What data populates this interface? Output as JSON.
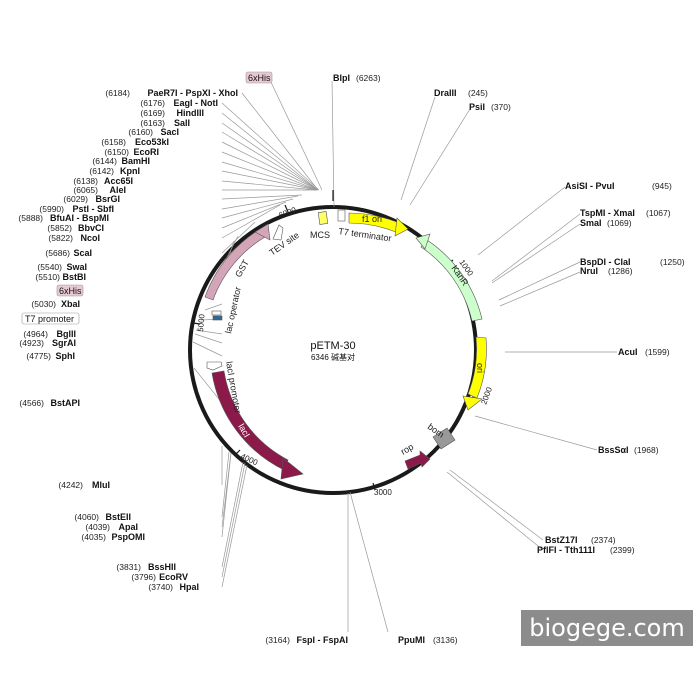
{
  "plasmid": {
    "name": "pETM-30",
    "size_label": "6346 碱基对"
  },
  "ticks": [
    "1000",
    "2000",
    "3000",
    "4000",
    "5000",
    "6000"
  ],
  "features": [
    {
      "label": "f1 ori",
      "color": "#ffff00"
    },
    {
      "label": "KanR",
      "color": "#ccffcc"
    },
    {
      "label": "ori",
      "color": "#ffff00"
    },
    {
      "label": "rop",
      "color": "#8b1a4a"
    },
    {
      "label": "bom",
      "color": "#999999"
    },
    {
      "label": "lacI",
      "color": "#8b1a4a"
    },
    {
      "label": "lacI promoter",
      "color": "#ffffff"
    },
    {
      "label": "lac operator",
      "color": "#ffffff"
    },
    {
      "label": "GST",
      "color": "#d4a5b8"
    },
    {
      "label": "TEV site",
      "color": "#ffffff"
    },
    {
      "label": "MCS",
      "color": "#ffff66"
    },
    {
      "label": "T7 terminator",
      "color": "#ffffff"
    }
  ],
  "sites": [
    {
      "pos": "(6184)",
      "name": "PaeR7I - PspXI - XhoI"
    },
    {
      "pos": "(6176)",
      "name": "EagI - NotI"
    },
    {
      "pos": "(6169)",
      "name": "HindIII"
    },
    {
      "pos": "(6163)",
      "name": "SalI"
    },
    {
      "pos": "(6160)",
      "name": "SacI"
    },
    {
      "pos": "(6158)",
      "name": "Eco53kI"
    },
    {
      "pos": "(6150)",
      "name": "EcoRI"
    },
    {
      "pos": "(6144)",
      "name": "BamHI"
    },
    {
      "pos": "(6142)",
      "name": "KpnI"
    },
    {
      "pos": "(6138)",
      "name": "Acc65I"
    },
    {
      "pos": "(6065)",
      "name": "AleI"
    },
    {
      "pos": "(6029)",
      "name": "BsrGI"
    },
    {
      "pos": "(5990)",
      "name": "PstI - SbfI"
    },
    {
      "pos": "(5888)",
      "name": "BfuAI - BspMI"
    },
    {
      "pos": "(5852)",
      "name": "BbvCI"
    },
    {
      "pos": "(5822)",
      "name": "NcoI"
    },
    {
      "pos": "(5686)",
      "name": "ScaI"
    },
    {
      "pos": "(5540)",
      "name": "SwaI"
    },
    {
      "pos": "(5510)",
      "name": "BstBI"
    },
    {
      "pos": "(5030)",
      "name": "XbaI"
    },
    {
      "pos": "(4964)",
      "name": "BglII"
    },
    {
      "pos": "(4923)",
      "name": "SgrAI"
    },
    {
      "pos": "(4775)",
      "name": "SphI"
    },
    {
      "pos": "(4566)",
      "name": "BstAPI"
    },
    {
      "pos": "(4242)",
      "name": "MluI"
    },
    {
      "pos": "(4060)",
      "name": "BstEII"
    },
    {
      "pos": "(4039)",
      "name": "ApaI"
    },
    {
      "pos": "(4035)",
      "name": "PspOMI"
    },
    {
      "pos": "(3831)",
      "name": "BssHII"
    },
    {
      "pos": "(3796)",
      "name": "EcoRV"
    },
    {
      "pos": "(3740)",
      "name": "HpaI"
    },
    {
      "pos": "(3164)",
      "name": "FspI - FspAI"
    },
    {
      "pos": "(3136)",
      "name": "PpuMI"
    },
    {
      "pos": "(6263)",
      "name": "BlpI"
    },
    {
      "pos": "(245)",
      "name": "DraIII"
    },
    {
      "pos": "(370)",
      "name": "PsiI"
    },
    {
      "pos": "(945)",
      "name": "AsiSI - PvuI"
    },
    {
      "pos": "(1067)",
      "name": "TspMI - XmaI"
    },
    {
      "pos": "(1069)",
      "name": "SmaI"
    },
    {
      "pos": "(1250)",
      "name": "BspDI - ClaI"
    },
    {
      "pos": "(1286)",
      "name": "NruI"
    },
    {
      "pos": "(1599)",
      "name": "AcuI"
    },
    {
      "pos": "(1968)",
      "name": "BssSαI"
    },
    {
      "pos": "(2374)",
      "name": "BstZ17I"
    },
    {
      "pos": "(2399)",
      "name": "PflFI - Tth111I"
    }
  ],
  "tags": [
    {
      "label": "6xHis",
      "color": "#e8c8d4"
    },
    {
      "label": "6xHis",
      "color": "#e8c8d4"
    },
    {
      "label": "T7 promoter",
      "color": "#ffffff"
    }
  ],
  "watermark": "biogege.com"
}
